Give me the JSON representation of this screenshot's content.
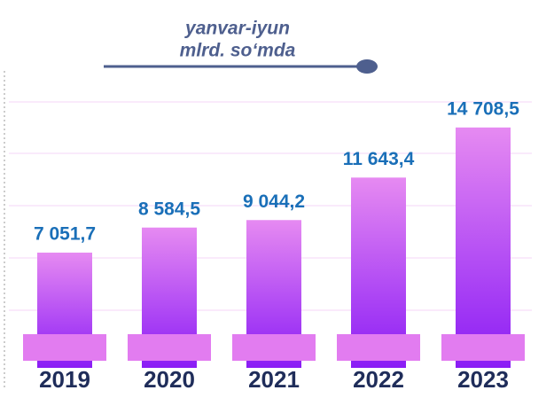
{
  "chart_data": {
    "type": "bar",
    "subtitle": [
      "yanvar-iyun",
      "mlrd. so‘mda"
    ],
    "categories": [
      "2019",
      "2020",
      "2021",
      "2022",
      "2023"
    ],
    "values": [
      7051.7,
      8584.5,
      9044.2,
      11643.4,
      14708.5
    ],
    "value_labels": [
      "7 051,7",
      "8 584,5",
      "9 044,2",
      "11 643,4",
      "14 708,5"
    ],
    "color": "#8a1cf5",
    "ylim": [
      0,
      16000
    ]
  }
}
